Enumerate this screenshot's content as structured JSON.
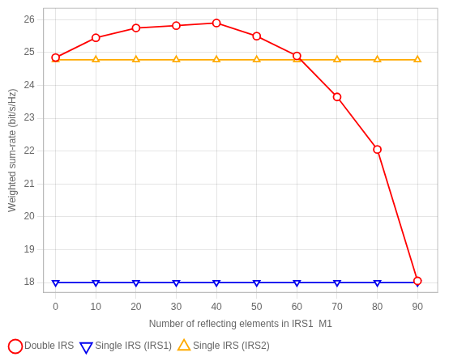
{
  "chart_data": {
    "type": "line",
    "x": [
      0,
      10,
      20,
      30,
      40,
      50,
      60,
      70,
      80,
      90
    ],
    "series": [
      {
        "name": "Double IRS",
        "color": "#ff0000",
        "marker": "circle",
        "values": [
          24.85,
          25.45,
          25.75,
          25.82,
          25.9,
          25.5,
          24.9,
          23.65,
          22.05,
          18.05
        ]
      },
      {
        "name": "Single IRS (IRS1)",
        "color": "#0000ee",
        "marker": "triangle-down",
        "values": [
          18.0,
          18.0,
          18.0,
          18.0,
          18.0,
          18.0,
          18.0,
          18.0,
          18.0,
          18.0
        ]
      },
      {
        "name": "Single IRS (IRS2)",
        "color": "#ffaa00",
        "marker": "triangle-up",
        "values": [
          24.78,
          24.78,
          24.78,
          24.78,
          24.78,
          24.78,
          24.78,
          24.78,
          24.78,
          24.78
        ]
      }
    ],
    "xlabel": "Number of reflecting elements in IRS1  M1",
    "ylabel": "Weighted sum-rate (bit/s/Hz)",
    "xlim": [
      -3,
      95
    ],
    "ylim": [
      17.7,
      26.35
    ],
    "xticks": [
      0,
      10,
      20,
      30,
      40,
      50,
      60,
      70,
      80,
      90
    ],
    "yticks": [
      18,
      19,
      20,
      21,
      22,
      23,
      24,
      25,
      26
    ],
    "grid": true,
    "legend": "lower left"
  }
}
